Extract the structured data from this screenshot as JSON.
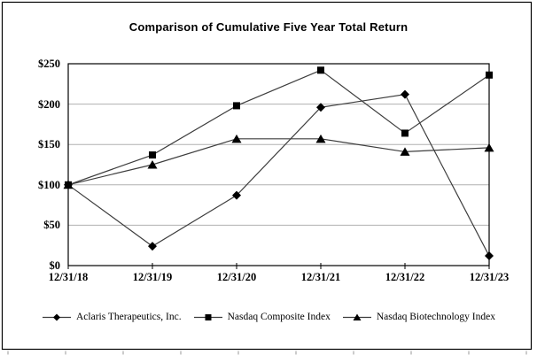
{
  "chart_data": {
    "type": "line",
    "title": "Comparison of Cumulative Five Year Total Return",
    "x": [
      "12/31/18",
      "12/31/19",
      "12/31/20",
      "12/31/21",
      "12/31/22",
      "12/31/23"
    ],
    "y_ticks_top_down": [
      "$250",
      "$200",
      "$150",
      "$100",
      "$50",
      "$0"
    ],
    "ylim": [
      0,
      250
    ],
    "y_tick_step": 50,
    "grid": "horizontal-on",
    "legend_position": "bottom",
    "series": [
      {
        "name": "Aclaris Therapeutics, Inc.",
        "marker": "diamond",
        "values": [
          100,
          24,
          87,
          196,
          212,
          12
        ]
      },
      {
        "name": "Nasdaq Composite Index",
        "marker": "square",
        "values": [
          100,
          137,
          198,
          242,
          164,
          236
        ]
      },
      {
        "name": "Nasdaq Biotechnology Index",
        "marker": "triangle",
        "values": [
          100,
          125,
          157,
          157,
          141,
          146
        ]
      }
    ],
    "colors": {
      "line": "#3d3d3d",
      "marker": "#000000",
      "grid": "#b0b0b0",
      "axis": "#000000",
      "text": "#000000",
      "frame": "#000000",
      "edge_tick": "#999999",
      "background": "#ffffff"
    }
  }
}
